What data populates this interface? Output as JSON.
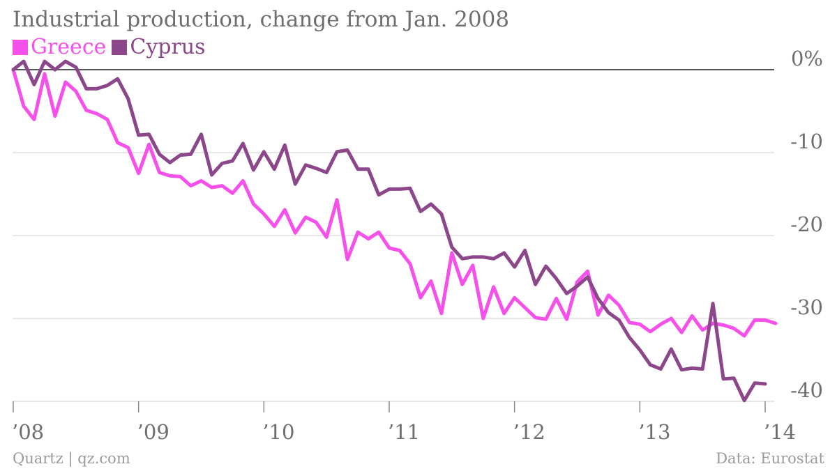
{
  "chart_data": {
    "type": "line",
    "title": "Industrial production, change from Jan. 2008",
    "ylim": [
      -40,
      0
    ],
    "xlim": [
      2008.0,
      2014.0
    ],
    "grid": true,
    "legend_placement": "top-left",
    "yticks": [
      {
        "value": 0,
        "label": "0%"
      },
      {
        "value": -10,
        "label": "-10"
      },
      {
        "value": -20,
        "label": "-20"
      },
      {
        "value": -30,
        "label": "-30"
      },
      {
        "value": -40,
        "label": "-40"
      }
    ],
    "xticks": [
      {
        "value": 2008,
        "label": "’08"
      },
      {
        "value": 2009,
        "label": "’09"
      },
      {
        "value": 2010,
        "label": "’10"
      },
      {
        "value": 2011,
        "label": "’11"
      },
      {
        "value": 2012,
        "label": "’12"
      },
      {
        "value": 2013,
        "label": "’13"
      },
      {
        "value": 2014,
        "label": "’14"
      }
    ],
    "series": [
      {
        "name": "Greece",
        "color": "#f550ea",
        "start": "2008-01",
        "values": [
          0,
          -4.4,
          -6,
          -0.5,
          -5.6,
          -1.5,
          -2.6,
          -4.9,
          -5.3,
          -6,
          -8.8,
          -9.4,
          -12.5,
          -9,
          -12.4,
          -12.8,
          -12.9,
          -14,
          -13.4,
          -14.2,
          -14,
          -14.9,
          -13.4,
          -16.2,
          -17.4,
          -18.9,
          -16.9,
          -19.7,
          -17.8,
          -18.4,
          -20.2,
          -15.7,
          -22.9,
          -19.6,
          -20.4,
          -19.6,
          -21.5,
          -21.8,
          -23.4,
          -27.5,
          -25.5,
          -29.4,
          -22.1,
          -25.9,
          -23.6,
          -30,
          -26.2,
          -29.4,
          -27.5,
          -28.7,
          -29.9,
          -30.1,
          -27.6,
          -30.1,
          -25.6,
          -24.3,
          -29.6,
          -27.2,
          -28.4,
          -30.5,
          -30.7,
          -31.6,
          -30.7,
          -30,
          -31.7,
          -29.7,
          -31.4,
          -30.6,
          -30.8,
          -31.2,
          -32.1,
          -30.2,
          -30.2,
          -30.6
        ]
      },
      {
        "name": "Cyprus",
        "color": "#8b4789",
        "start": "2008-01",
        "values": [
          0,
          1,
          -1.8,
          1,
          0,
          1,
          0.3,
          -2.3,
          -2.3,
          -1.9,
          -1.1,
          -3.5,
          -7.9,
          -7.8,
          -10.2,
          -11.2,
          -10.3,
          -10.2,
          -7.8,
          -12.7,
          -11.3,
          -11,
          -8.9,
          -12.1,
          -9.9,
          -12,
          -9.1,
          -13.8,
          -11.5,
          -11.9,
          -12.4,
          -9.9,
          -9.7,
          -12,
          -12,
          -15.1,
          -14.4,
          -14.4,
          -14.3,
          -17.1,
          -16.2,
          -17.4,
          -21.4,
          -22.8,
          -22.6,
          -22.6,
          -22.8,
          -22.1,
          -23.8,
          -21.8,
          -25.9,
          -23.7,
          -25.2,
          -27,
          -26.1,
          -25,
          -27.6,
          -29.3,
          -30.2,
          -32.3,
          -33.8,
          -35.6,
          -36.1,
          -33.7,
          -36.2,
          -36,
          -36.1,
          -28.2,
          -37.3,
          -37.2,
          -39.9,
          -37.8,
          -37.9
        ]
      }
    ]
  },
  "footer": {
    "left": "Quartz | qz.com",
    "right": "Data: Eurostat"
  }
}
